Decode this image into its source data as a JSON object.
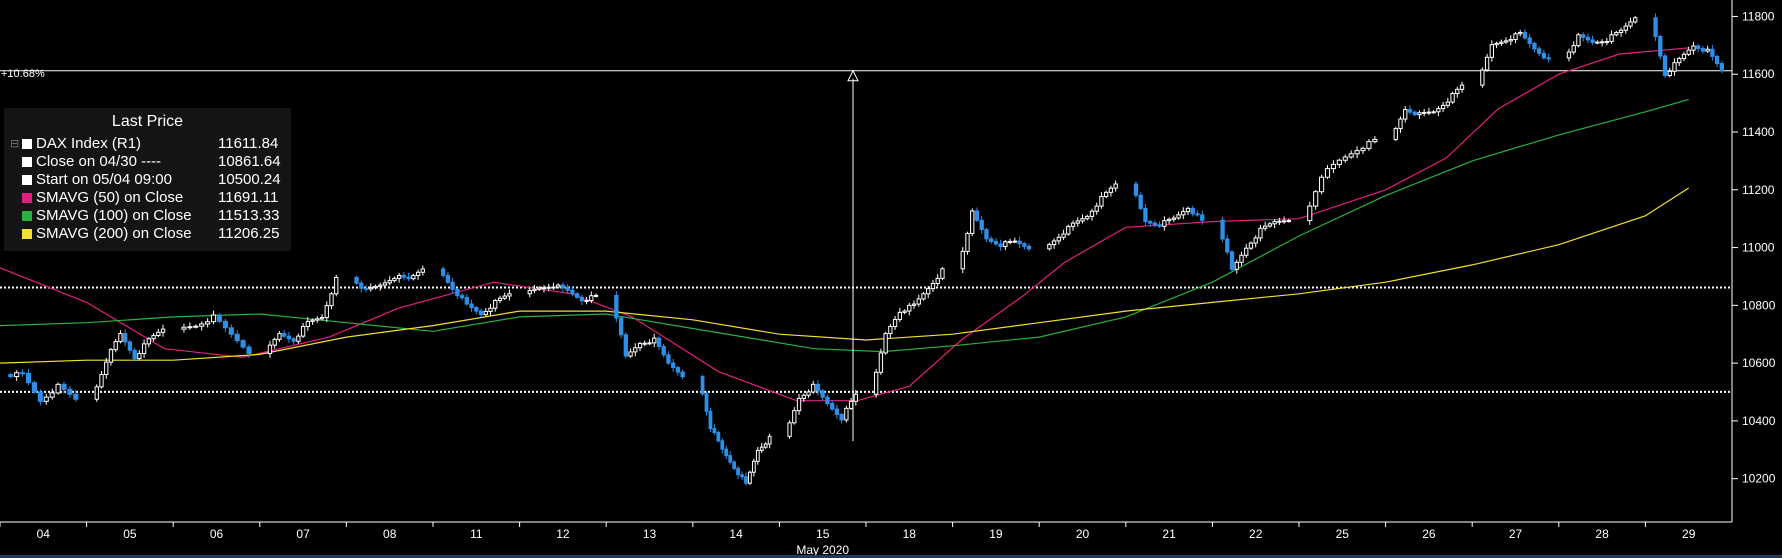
{
  "chart_data": {
    "type": "candlestick",
    "title": "",
    "xlabel": "May 2020",
    "ylabel": "",
    "ylim": [
      10050,
      11850
    ],
    "yticks": [
      10200,
      10400,
      10600,
      10800,
      11000,
      11200,
      11400,
      11600,
      11800
    ],
    "categories": [
      "04",
      "05",
      "06",
      "07",
      "08",
      "11",
      "12",
      "13",
      "14",
      "15",
      "18",
      "19",
      "20",
      "21",
      "22",
      "25",
      "26",
      "27",
      "28",
      "29"
    ],
    "grid": false,
    "legend_position": "top-left",
    "change_annotation": "+10.68%",
    "reference_lines": [
      {
        "name": "Close on 04/30",
        "value": 10861.64,
        "style": "dotted"
      },
      {
        "name": "Start on 05/04 09:00",
        "value": 10500.24,
        "style": "dotted"
      },
      {
        "name": "Last",
        "value": 11611.84,
        "style": "solid"
      }
    ],
    "closes": {
      "04": [
        10560,
        10470,
        10520,
        10475
      ],
      "05": [
        10610,
        10700,
        10620,
        10680,
        10720
      ],
      "06": [
        10730,
        10760,
        10700,
        10640
      ],
      "07": [
        10700,
        10680,
        10740,
        10760,
        10890
      ],
      "08": [
        10850,
        10870,
        10900,
        10890,
        10930
      ],
      "11": [
        10860,
        10800,
        10770,
        10810,
        10840
      ],
      "12": [
        10860,
        10870,
        10850,
        10820,
        10830
      ],
      "13": [
        10620,
        10670,
        10680,
        10600,
        10560
      ],
      "14": [
        10380,
        10300,
        10240,
        10180,
        10300,
        10340
      ],
      "15": [
        10480,
        10520,
        10460,
        10410,
        10490
      ],
      "18": [
        10700,
        10780,
        10800,
        10860,
        10920
      ],
      "19": [
        11120,
        11030,
        11010,
        11020,
        11000
      ],
      "20": [
        11040,
        11080,
        11110,
        11170,
        11220
      ],
      "21": [
        11090,
        11080,
        11100,
        11140,
        11090
      ],
      "22": [
        10920,
        11000,
        11060,
        11090,
        11100
      ],
      "25": [
        11250,
        11300,
        11340,
        11370
      ],
      "26": [
        11480,
        11460,
        11470,
        11510,
        11560
      ],
      "27": [
        11700,
        11720,
        11740,
        11690,
        11650
      ],
      "28": [
        11730,
        11710,
        11720,
        11750,
        11800
      ],
      "29": [
        11600,
        11650,
        11700,
        11680,
        11612
      ]
    },
    "series": [
      {
        "name": "SMAVG (50)  on Close",
        "color": "#e0207c",
        "x": [
          0,
          1,
          1.9,
          2.8,
          3.8,
          4.6,
          5.7,
          6.6,
          7.3,
          8.3,
          9.2,
          9.9,
          10.5,
          11.1,
          11.8,
          12.3,
          13.0,
          14.0,
          15.0,
          16.0,
          16.7,
          17.3,
          18.0,
          18.7,
          19.5
        ],
        "values": [
          10930,
          10810,
          10650,
          10620,
          10690,
          10790,
          10880,
          10840,
          10760,
          10570,
          10470,
          10470,
          10520,
          10680,
          10830,
          10950,
          11070,
          11090,
          11100,
          11200,
          11310,
          11480,
          11600,
          11670,
          11691
        ]
      },
      {
        "name": "SMAVG (100)  on Close",
        "color": "#28b040",
        "x": [
          0,
          1,
          2,
          3,
          4,
          5,
          6,
          7,
          7.8,
          8.8,
          9.4,
          10.2,
          11.0,
          12.0,
          13.0,
          14.0,
          15.0,
          16.0,
          17.0,
          18.0,
          19.0,
          19.5
        ],
        "values": [
          10730,
          10740,
          10760,
          10770,
          10740,
          10710,
          10760,
          10770,
          10730,
          10680,
          10650,
          10640,
          10660,
          10690,
          10760,
          10880,
          11040,
          11180,
          11300,
          11390,
          11470,
          11513
        ]
      },
      {
        "name": "SMAVG (200)  on Close",
        "color": "#f0e030",
        "x": [
          0,
          1,
          2,
          3,
          4,
          5,
          6,
          7,
          8,
          9,
          10,
          11,
          12,
          13,
          14,
          15,
          16,
          17,
          18,
          19,
          19.5
        ],
        "values": [
          10600,
          10610,
          10610,
          10630,
          10690,
          10730,
          10780,
          10780,
          10750,
          10700,
          10680,
          10700,
          10740,
          10780,
          10810,
          10840,
          10880,
          10940,
          11010,
          11110,
          11206
        ]
      }
    ]
  },
  "legend": {
    "header": "Last Price",
    "rows": [
      {
        "name": "DAX Index  (R1)",
        "value": "11611.84",
        "color": "#ffffff"
      },
      {
        "name": "Close on 04/30 ----",
        "value": "10861.64",
        "color": "#ffffff"
      },
      {
        "name": "Start on 05/04 09:00",
        "value": "10500.24",
        "color": "#ffffff"
      },
      {
        "name": "SMAVG (50)  on Close",
        "value": "11691.11",
        "color": "#e0207c"
      },
      {
        "name": "SMAVG (100)  on Close",
        "value": "11513.33",
        "color": "#28b040"
      },
      {
        "name": "SMAVG (200)  on Close",
        "value": "11206.25",
        "color": "#f0e030"
      }
    ]
  },
  "colors": {
    "up": "#ffffff",
    "down": "#2e8fe8",
    "axis": "#ffffff",
    "background": "#000000"
  }
}
